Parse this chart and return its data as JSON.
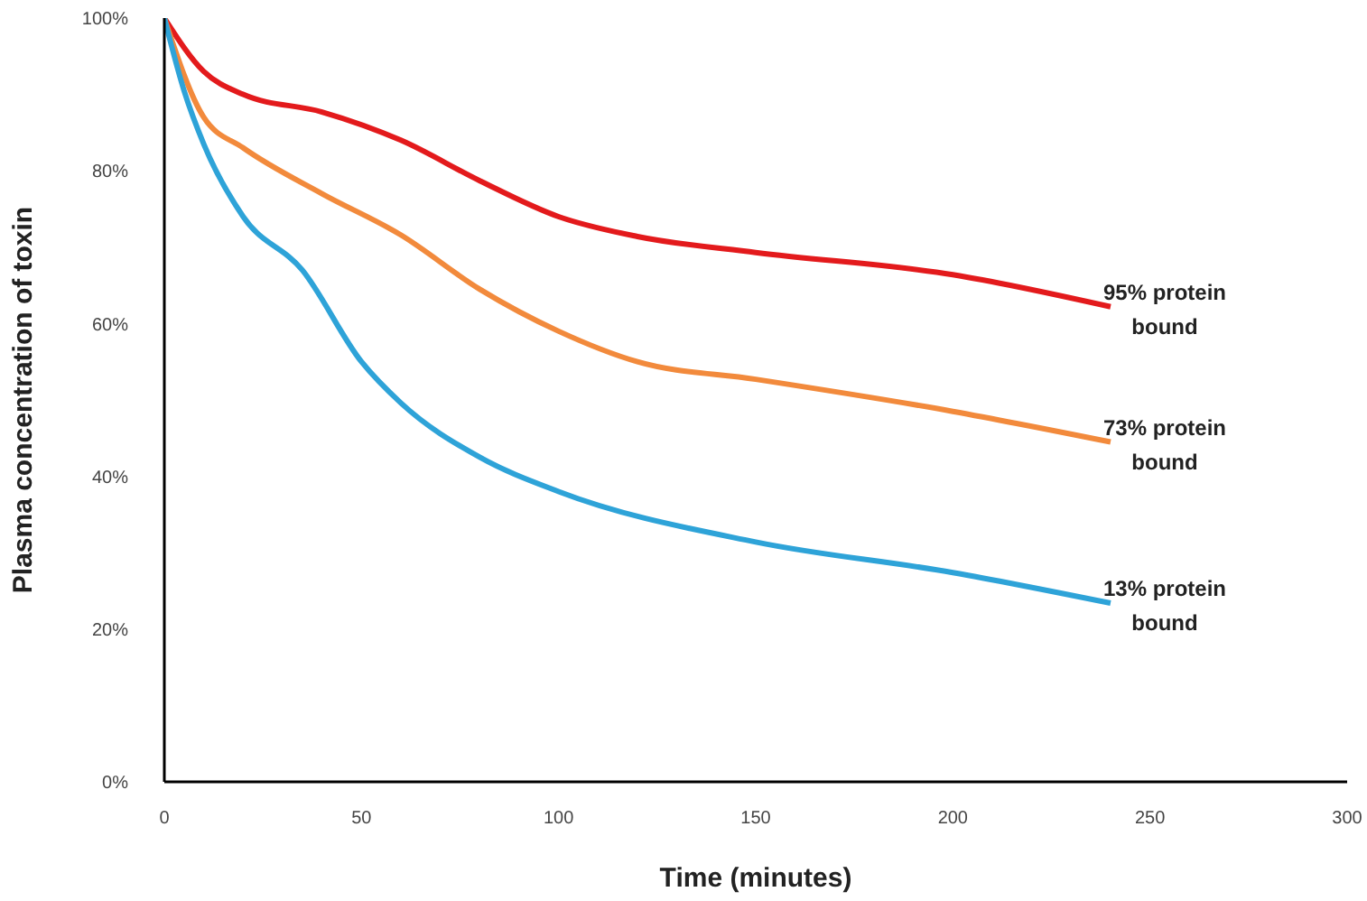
{
  "chart_data": {
    "type": "line",
    "xlabel": "Time (minutes)",
    "ylabel": "Plasma concentration of toxin",
    "xlim": [
      0,
      300
    ],
    "xticks": [
      0,
      50,
      100,
      150,
      200,
      250,
      300
    ],
    "ylim": [
      0,
      100
    ],
    "yticks": [
      {
        "value": 0,
        "label": "0%"
      },
      {
        "value": 20,
        "label": "20%"
      },
      {
        "value": 40,
        "label": "40%"
      },
      {
        "value": 60,
        "label": "60%"
      },
      {
        "value": 80,
        "label": "80%"
      },
      {
        "value": 100,
        "label": "100%"
      }
    ],
    "grid": false,
    "legend": false,
    "marker": "none",
    "line_style": "solid",
    "series": [
      {
        "name": "95% protein bound",
        "color": "#e31a1c",
        "x": [
          0,
          10,
          20,
          40,
          60,
          80,
          100,
          120,
          150,
          200,
          240
        ],
        "values": [
          100,
          93,
          90,
          87.7,
          84,
          78.7,
          74,
          71.4,
          69.3,
          66.4,
          62.2
        ]
      },
      {
        "name": "73% protein bound",
        "color": "#f28a3c",
        "x": [
          0,
          10,
          20,
          40,
          60,
          80,
          100,
          120,
          150,
          200,
          240
        ],
        "values": [
          100,
          87,
          83,
          77,
          71.6,
          64.5,
          59,
          55,
          52.7,
          48.5,
          44.5
        ]
      },
      {
        "name": "13% protein bound",
        "color": "#2ea3d8",
        "x": [
          0,
          5,
          10,
          20,
          35,
          50,
          60,
          80,
          100,
          150,
          200,
          240
        ],
        "values": [
          100,
          90.5,
          83.5,
          74,
          67,
          55,
          49.6,
          42.5,
          38,
          31.4,
          27.4,
          23.4
        ]
      }
    ]
  }
}
